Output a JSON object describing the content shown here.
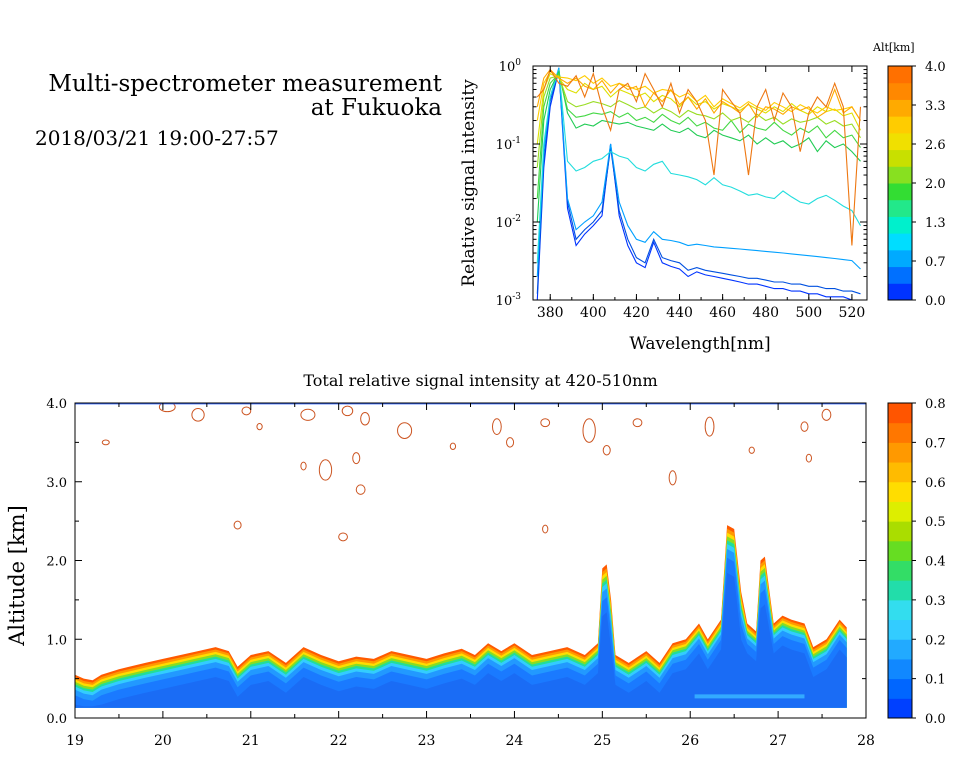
{
  "header": {
    "title_line1": "Multi-spectrometer measurement",
    "title_line2": "at Fukuoka",
    "date_range": "2018/03/21 19:00-27:57"
  },
  "chart_data": [
    {
      "type": "line",
      "xlabel": "Wavelength[nm]",
      "ylabel": "Relative signal intensity",
      "xlim": [
        372,
        527
      ],
      "ylim": [
        0.001,
        1
      ],
      "y_scale": "log",
      "x_ticks": [
        380,
        400,
        420,
        440,
        460,
        480,
        500,
        520
      ],
      "y_ticks": [
        {
          "base": "10",
          "exp": "0"
        },
        {
          "base": "10",
          "exp": "-1"
        },
        {
          "base": "10",
          "exp": "-2"
        },
        {
          "base": "10",
          "exp": "-3"
        }
      ],
      "colorbar": {
        "label": "Alt[km]",
        "ticks": [
          "4.0",
          "3.3",
          "2.6",
          "2.0",
          "1.3",
          "0.7",
          "0.0"
        ],
        "colors": [
          "#0033ff",
          "#0070ff",
          "#00aaff",
          "#00ddff",
          "#00f0cc",
          "#22e88a",
          "#33dd33",
          "#88e020",
          "#c8e000",
          "#f0e000",
          "#ffcc00",
          "#ffaa00",
          "#ff8800",
          "#ff7000"
        ]
      },
      "x": [
        374,
        377,
        380,
        384,
        388,
        392,
        396,
        400,
        404,
        408,
        412,
        416,
        420,
        424,
        428,
        432,
        436,
        440,
        444,
        448,
        452,
        456,
        460,
        464,
        468,
        472,
        476,
        480,
        484,
        488,
        492,
        496,
        500,
        504,
        508,
        512,
        516,
        520,
        524
      ],
      "series": [
        {
          "color": "#0033ff",
          "values": [
            0.001,
            0.05,
            0.3,
            0.9,
            0.015,
            0.005,
            0.007,
            0.009,
            0.012,
            0.1,
            0.012,
            0.005,
            0.003,
            0.0026,
            0.0055,
            0.003,
            0.0027,
            0.0025,
            0.002,
            0.0023,
            0.0021,
            0.002,
            0.0019,
            0.0018,
            0.0017,
            0.0016,
            0.0016,
            0.0015,
            0.0014,
            0.0014,
            0.0013,
            0.0013,
            0.0012,
            0.0012,
            0.0011,
            0.0011,
            0.0011,
            0.001,
            0.001
          ]
        },
        {
          "color": "#0050e0",
          "values": [
            0.0012,
            0.06,
            0.35,
            0.92,
            0.018,
            0.006,
            0.008,
            0.01,
            0.014,
            0.09,
            0.014,
            0.006,
            0.0035,
            0.003,
            0.006,
            0.0035,
            0.0032,
            0.003,
            0.0024,
            0.0026,
            0.0024,
            0.0023,
            0.0022,
            0.0021,
            0.002,
            0.0019,
            0.0019,
            0.0018,
            0.0017,
            0.0017,
            0.0016,
            0.0016,
            0.0015,
            0.0015,
            0.0014,
            0.0014,
            0.0013,
            0.0013,
            0.0012
          ]
        },
        {
          "color": "#00a0ff",
          "values": [
            0.002,
            0.08,
            0.4,
            0.95,
            0.02,
            0.008,
            0.01,
            0.012,
            0.018,
            0.1,
            0.018,
            0.009,
            0.006,
            0.0055,
            0.0075,
            0.006,
            0.0058,
            0.0055,
            0.005,
            0.0052,
            0.005,
            0.0048,
            0.0047,
            0.0046,
            0.0045,
            0.0044,
            0.0043,
            0.0042,
            0.0041,
            0.004,
            0.0039,
            0.0038,
            0.0037,
            0.0036,
            0.0035,
            0.0034,
            0.0033,
            0.0032,
            0.0025
          ]
        },
        {
          "color": "#22dddd",
          "values": [
            0.003,
            0.1,
            0.4,
            0.9,
            0.06,
            0.045,
            0.05,
            0.06,
            0.065,
            0.08,
            0.07,
            0.065,
            0.05,
            0.045,
            0.055,
            0.06,
            0.042,
            0.04,
            0.038,
            0.035,
            0.03,
            0.037,
            0.03,
            0.028,
            0.025,
            0.022,
            0.023,
            0.021,
            0.02,
            0.025,
            0.021,
            0.018,
            0.017,
            0.02,
            0.022,
            0.019,
            0.016,
            0.014,
            0.009
          ]
        },
        {
          "color": "#22cc55",
          "values": [
            0.01,
            0.2,
            0.5,
            0.85,
            0.25,
            0.16,
            0.18,
            0.17,
            0.2,
            0.19,
            0.18,
            0.19,
            0.17,
            0.16,
            0.15,
            0.18,
            0.15,
            0.14,
            0.16,
            0.13,
            0.12,
            0.15,
            0.13,
            0.12,
            0.11,
            0.13,
            0.1,
            0.12,
            0.1,
            0.11,
            0.09,
            0.1,
            0.12,
            0.08,
            0.11,
            0.09,
            0.1,
            0.08,
            0.06
          ]
        },
        {
          "color": "#44d844",
          "values": [
            0.02,
            0.3,
            0.6,
            0.8,
            0.28,
            0.22,
            0.23,
            0.25,
            0.24,
            0.26,
            0.22,
            0.25,
            0.2,
            0.22,
            0.19,
            0.24,
            0.2,
            0.18,
            0.22,
            0.17,
            0.19,
            0.16,
            0.15,
            0.2,
            0.14,
            0.18,
            0.16,
            0.15,
            0.19,
            0.15,
            0.13,
            0.16,
            0.14,
            0.17,
            0.12,
            0.15,
            0.12,
            0.13,
            0.09
          ]
        },
        {
          "color": "#99dd22",
          "values": [
            0.05,
            0.4,
            0.7,
            0.75,
            0.35,
            0.3,
            0.32,
            0.35,
            0.33,
            0.3,
            0.36,
            0.32,
            0.28,
            0.3,
            0.25,
            0.29,
            0.26,
            0.22,
            0.27,
            0.24,
            0.23,
            0.21,
            0.25,
            0.2,
            0.22,
            0.19,
            0.24,
            0.2,
            0.22,
            0.18,
            0.21,
            0.19,
            0.2,
            0.22,
            0.18,
            0.2,
            0.17,
            0.18,
            0.12
          ]
        },
        {
          "color": "#dde000",
          "values": [
            0.1,
            0.5,
            0.8,
            0.7,
            0.5,
            0.45,
            0.6,
            0.5,
            0.55,
            0.4,
            0.5,
            0.45,
            0.4,
            0.45,
            0.35,
            0.42,
            0.38,
            0.3,
            0.4,
            0.32,
            0.35,
            0.28,
            0.33,
            0.3,
            0.27,
            0.32,
            0.28,
            0.25,
            0.3,
            0.26,
            0.33,
            0.27,
            0.24,
            0.3,
            0.26,
            0.28,
            0.23,
            0.25,
            0.15
          ]
        },
        {
          "color": "#ffcc00",
          "values": [
            0.2,
            0.6,
            0.85,
            0.72,
            0.7,
            0.65,
            0.75,
            0.6,
            0.7,
            0.55,
            0.6,
            0.55,
            0.5,
            0.55,
            0.45,
            0.5,
            0.48,
            0.4,
            0.45,
            0.35,
            0.42,
            0.3,
            0.38,
            0.33,
            0.29,
            0.35,
            0.3,
            0.27,
            0.34,
            0.3,
            0.26,
            0.32,
            0.28,
            0.25,
            0.3,
            0.27,
            0.28,
            0.3,
            0.2
          ]
        },
        {
          "color": "#ffaa00",
          "values": [
            0.3,
            0.7,
            0.9,
            0.7,
            0.6,
            0.7,
            0.55,
            0.5,
            0.65,
            0.45,
            0.6,
            0.5,
            0.55,
            0.3,
            0.45,
            0.35,
            0.5,
            0.32,
            0.4,
            0.28,
            0.38,
            0.25,
            0.35,
            0.3,
            0.25,
            0.33,
            0.22,
            0.3,
            0.28,
            0.24,
            0.3,
            0.27,
            0.3,
            0.22,
            0.26,
            0.5,
            0.25,
            0.3,
            0.2
          ]
        },
        {
          "color": "#ee7711",
          "values": [
            0.4,
            0.5,
            0.9,
            0.6,
            0.55,
            0.75,
            0.4,
            0.8,
            0.3,
            0.15,
            0.5,
            0.6,
            0.35,
            0.8,
            0.5,
            0.3,
            0.6,
            0.25,
            0.5,
            0.35,
            0.2,
            0.04,
            0.5,
            0.35,
            0.25,
            0.04,
            0.3,
            0.5,
            0.2,
            0.45,
            0.3,
            0.08,
            0.25,
            0.4,
            0.3,
            0.6,
            0.3,
            0.005,
            0.3
          ]
        }
      ]
    },
    {
      "type": "heatmap",
      "title": "Total relative signal intensity at 420-510nm",
      "ylabel": "Altitude [km]",
      "xlim": [
        19,
        28
      ],
      "ylim": [
        0,
        4
      ],
      "x_ticks": [
        "19",
        "20",
        "21",
        "22",
        "23",
        "24",
        "25",
        "26",
        "27",
        "28"
      ],
      "y_ticks": [
        "0.0",
        "1.0",
        "2.0",
        "3.0",
        "4.0"
      ],
      "colorbar": {
        "ticks": [
          "0.8",
          "0.7",
          "0.6",
          "0.5",
          "0.4",
          "0.3",
          "0.2",
          "0.1",
          "0.0"
        ],
        "colors": [
          "#0040ff",
          "#0066ff",
          "#1188ff",
          "#22aaff",
          "#33ccff",
          "#33ddee",
          "#22ddaa",
          "#33dd66",
          "#66dd22",
          "#aadd00",
          "#ddee00",
          "#ffdd00",
          "#ffbb00",
          "#ff9900",
          "#ff7700",
          "#ff5500"
        ]
      },
      "layer_top": {
        "x": [
          19.0,
          19.1,
          19.2,
          19.3,
          19.5,
          19.8,
          20.0,
          20.2,
          20.4,
          20.6,
          20.75,
          20.85,
          21.0,
          21.2,
          21.4,
          21.6,
          21.8,
          22.0,
          22.2,
          22.4,
          22.6,
          22.8,
          23.0,
          23.2,
          23.4,
          23.55,
          23.7,
          23.85,
          24.0,
          24.2,
          24.4,
          24.6,
          24.8,
          24.95,
          25.0,
          25.05,
          25.1,
          25.15,
          25.3,
          25.5,
          25.65,
          25.8,
          25.95,
          26.1,
          26.2,
          26.35,
          26.42,
          26.5,
          26.58,
          26.65,
          26.75,
          26.8,
          26.85,
          26.95,
          27.05,
          27.15,
          27.3,
          27.4,
          27.55,
          27.7,
          27.78
        ],
        "y": [
          0.55,
          0.5,
          0.48,
          0.55,
          0.62,
          0.7,
          0.75,
          0.8,
          0.85,
          0.9,
          0.85,
          0.65,
          0.8,
          0.85,
          0.7,
          0.9,
          0.8,
          0.72,
          0.78,
          0.75,
          0.85,
          0.8,
          0.75,
          0.82,
          0.88,
          0.8,
          0.95,
          0.85,
          0.95,
          0.8,
          0.85,
          0.9,
          0.8,
          0.95,
          1.9,
          1.95,
          1.5,
          0.8,
          0.7,
          0.85,
          0.7,
          0.95,
          1.0,
          1.2,
          1.0,
          1.25,
          2.45,
          2.4,
          1.6,
          1.2,
          1.1,
          2.0,
          2.05,
          1.2,
          1.3,
          1.25,
          1.2,
          0.9,
          1.0,
          1.25,
          1.15
        ]
      },
      "layer_bottom": 0.13,
      "cloud_patches": [
        {
          "x": 20.05,
          "y": 3.95,
          "rx": 0.09,
          "ry": 0.06
        },
        {
          "x": 20.4,
          "y": 3.85,
          "rx": 0.07,
          "ry": 0.08
        },
        {
          "x": 20.95,
          "y": 3.9,
          "rx": 0.05,
          "ry": 0.05
        },
        {
          "x": 19.35,
          "y": 3.5,
          "rx": 0.04,
          "ry": 0.03
        },
        {
          "x": 21.1,
          "y": 3.7,
          "rx": 0.03,
          "ry": 0.04
        },
        {
          "x": 21.65,
          "y": 3.85,
          "rx": 0.08,
          "ry": 0.07
        },
        {
          "x": 22.1,
          "y": 3.9,
          "rx": 0.06,
          "ry": 0.06
        },
        {
          "x": 22.3,
          "y": 3.8,
          "rx": 0.05,
          "ry": 0.08
        },
        {
          "x": 22.75,
          "y": 3.65,
          "rx": 0.08,
          "ry": 0.1
        },
        {
          "x": 22.2,
          "y": 3.3,
          "rx": 0.04,
          "ry": 0.07
        },
        {
          "x": 21.85,
          "y": 3.15,
          "rx": 0.07,
          "ry": 0.13
        },
        {
          "x": 22.05,
          "y": 2.3,
          "rx": 0.05,
          "ry": 0.05
        },
        {
          "x": 21.6,
          "y": 3.2,
          "rx": 0.03,
          "ry": 0.05
        },
        {
          "x": 22.25,
          "y": 2.9,
          "rx": 0.05,
          "ry": 0.06
        },
        {
          "x": 20.85,
          "y": 2.45,
          "rx": 0.04,
          "ry": 0.05
        },
        {
          "x": 23.8,
          "y": 3.7,
          "rx": 0.05,
          "ry": 0.1
        },
        {
          "x": 23.95,
          "y": 3.5,
          "rx": 0.04,
          "ry": 0.06
        },
        {
          "x": 24.35,
          "y": 3.75,
          "rx": 0.05,
          "ry": 0.05
        },
        {
          "x": 24.85,
          "y": 3.65,
          "rx": 0.07,
          "ry": 0.15
        },
        {
          "x": 25.05,
          "y": 3.4,
          "rx": 0.04,
          "ry": 0.06
        },
        {
          "x": 25.4,
          "y": 3.75,
          "rx": 0.05,
          "ry": 0.05
        },
        {
          "x": 26.22,
          "y": 3.7,
          "rx": 0.05,
          "ry": 0.12
        },
        {
          "x": 25.8,
          "y": 3.05,
          "rx": 0.04,
          "ry": 0.09
        },
        {
          "x": 26.7,
          "y": 3.4,
          "rx": 0.03,
          "ry": 0.04
        },
        {
          "x": 27.3,
          "y": 3.7,
          "rx": 0.04,
          "ry": 0.06
        },
        {
          "x": 27.55,
          "y": 3.85,
          "rx": 0.05,
          "ry": 0.07
        },
        {
          "x": 27.35,
          "y": 3.3,
          "rx": 0.03,
          "ry": 0.05
        },
        {
          "x": 24.35,
          "y": 2.4,
          "rx": 0.03,
          "ry": 0.05
        },
        {
          "x": 23.3,
          "y": 3.45,
          "rx": 0.03,
          "ry": 0.04
        }
      ]
    }
  ]
}
